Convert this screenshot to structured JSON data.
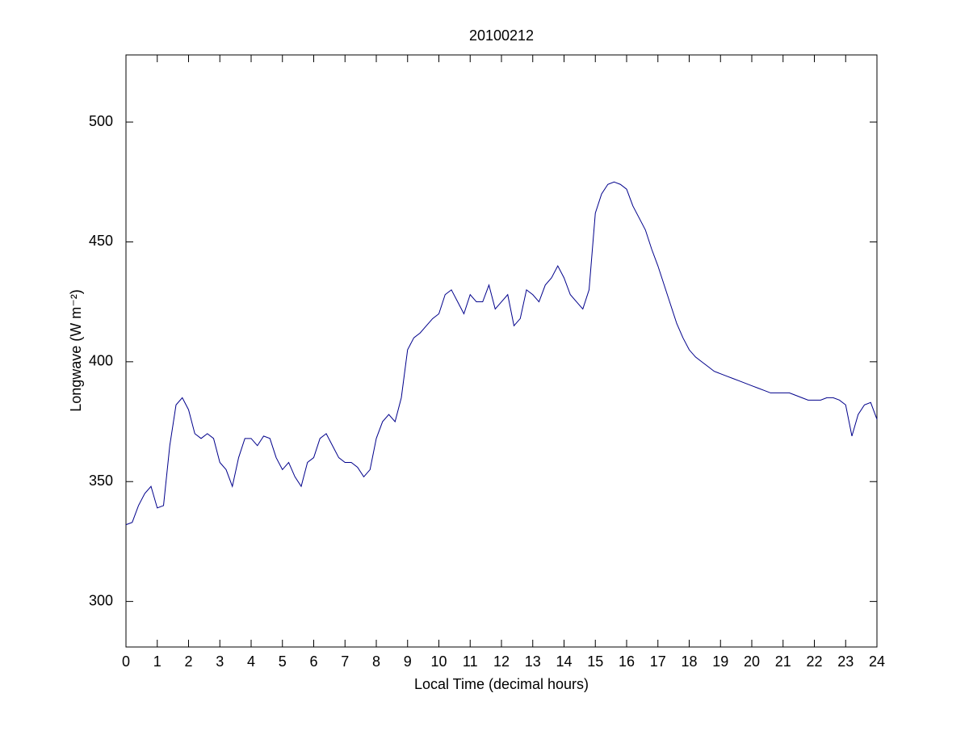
{
  "chart_data": {
    "type": "line",
    "title": "20100212",
    "xlabel": "Local Time (decimal hours)",
    "ylabel": "Longwave (W m⁻²)",
    "x": [
      0,
      0.2,
      0.4,
      0.6,
      0.8,
      1,
      1.2,
      1.4,
      1.6,
      1.8,
      2,
      2.2,
      2.4,
      2.6,
      2.8,
      3,
      3.2,
      3.4,
      3.6,
      3.8,
      4,
      4.2,
      4.4,
      4.6,
      4.8,
      5,
      5.2,
      5.4,
      5.6,
      5.8,
      6,
      6.2,
      6.4,
      6.6,
      6.8,
      7,
      7.2,
      7.4,
      7.6,
      7.8,
      8,
      8.2,
      8.4,
      8.6,
      8.8,
      9,
      9.2,
      9.4,
      9.6,
      9.8,
      10,
      10.2,
      10.4,
      10.6,
      10.8,
      11,
      11.2,
      11.4,
      11.6,
      11.8,
      12,
      12.2,
      12.4,
      12.6,
      12.8,
      13,
      13.2,
      13.4,
      13.6,
      13.8,
      14,
      14.2,
      14.4,
      14.6,
      14.8,
      15,
      15.2,
      15.4,
      15.6,
      15.8,
      16,
      16.2,
      16.4,
      16.6,
      16.8,
      17,
      17.2,
      17.4,
      17.6,
      17.8,
      18,
      18.2,
      18.4,
      18.6,
      18.8,
      19,
      19.2,
      19.4,
      19.6,
      19.8,
      20,
      20.2,
      20.4,
      20.6,
      20.8,
      21,
      21.2,
      21.4,
      21.6,
      21.8,
      22,
      22.2,
      22.4,
      22.6,
      22.8,
      23,
      23.2,
      23.4,
      23.6,
      23.8,
      24
    ],
    "series": [
      {
        "name": "Longwave",
        "color": "#00008b",
        "values": [
          332,
          333,
          340,
          345,
          348,
          339,
          340,
          365,
          382,
          385,
          380,
          370,
          368,
          370,
          368,
          358,
          355,
          348,
          360,
          368,
          368,
          365,
          369,
          368,
          360,
          355,
          358,
          352,
          348,
          358,
          360,
          368,
          370,
          365,
          360,
          358,
          358,
          356,
          352,
          355,
          368,
          375,
          378,
          375,
          385,
          405,
          410,
          412,
          415,
          418,
          420,
          428,
          430,
          425,
          420,
          428,
          425,
          425,
          432,
          422,
          425,
          428,
          415,
          418,
          430,
          428,
          425,
          432,
          435,
          440,
          435,
          428,
          425,
          422,
          430,
          462,
          470,
          474,
          475,
          474,
          472,
          465,
          460,
          455,
          447,
          440,
          432,
          424,
          416,
          410,
          405,
          402,
          400,
          398,
          396,
          395,
          394,
          393,
          392,
          391,
          390,
          389,
          388,
          387,
          387,
          387,
          387,
          386,
          385,
          384,
          384,
          384,
          385,
          385,
          384,
          382,
          369,
          378,
          382,
          383,
          376
        ]
      }
    ],
    "xlim": [
      0,
      24
    ],
    "ylim": [
      281,
      528
    ],
    "xticks": [
      0,
      1,
      2,
      3,
      4,
      5,
      6,
      7,
      8,
      9,
      10,
      11,
      12,
      13,
      14,
      15,
      16,
      17,
      18,
      19,
      20,
      21,
      22,
      23,
      24
    ],
    "yticks": [
      300,
      350,
      400,
      450,
      500
    ]
  }
}
